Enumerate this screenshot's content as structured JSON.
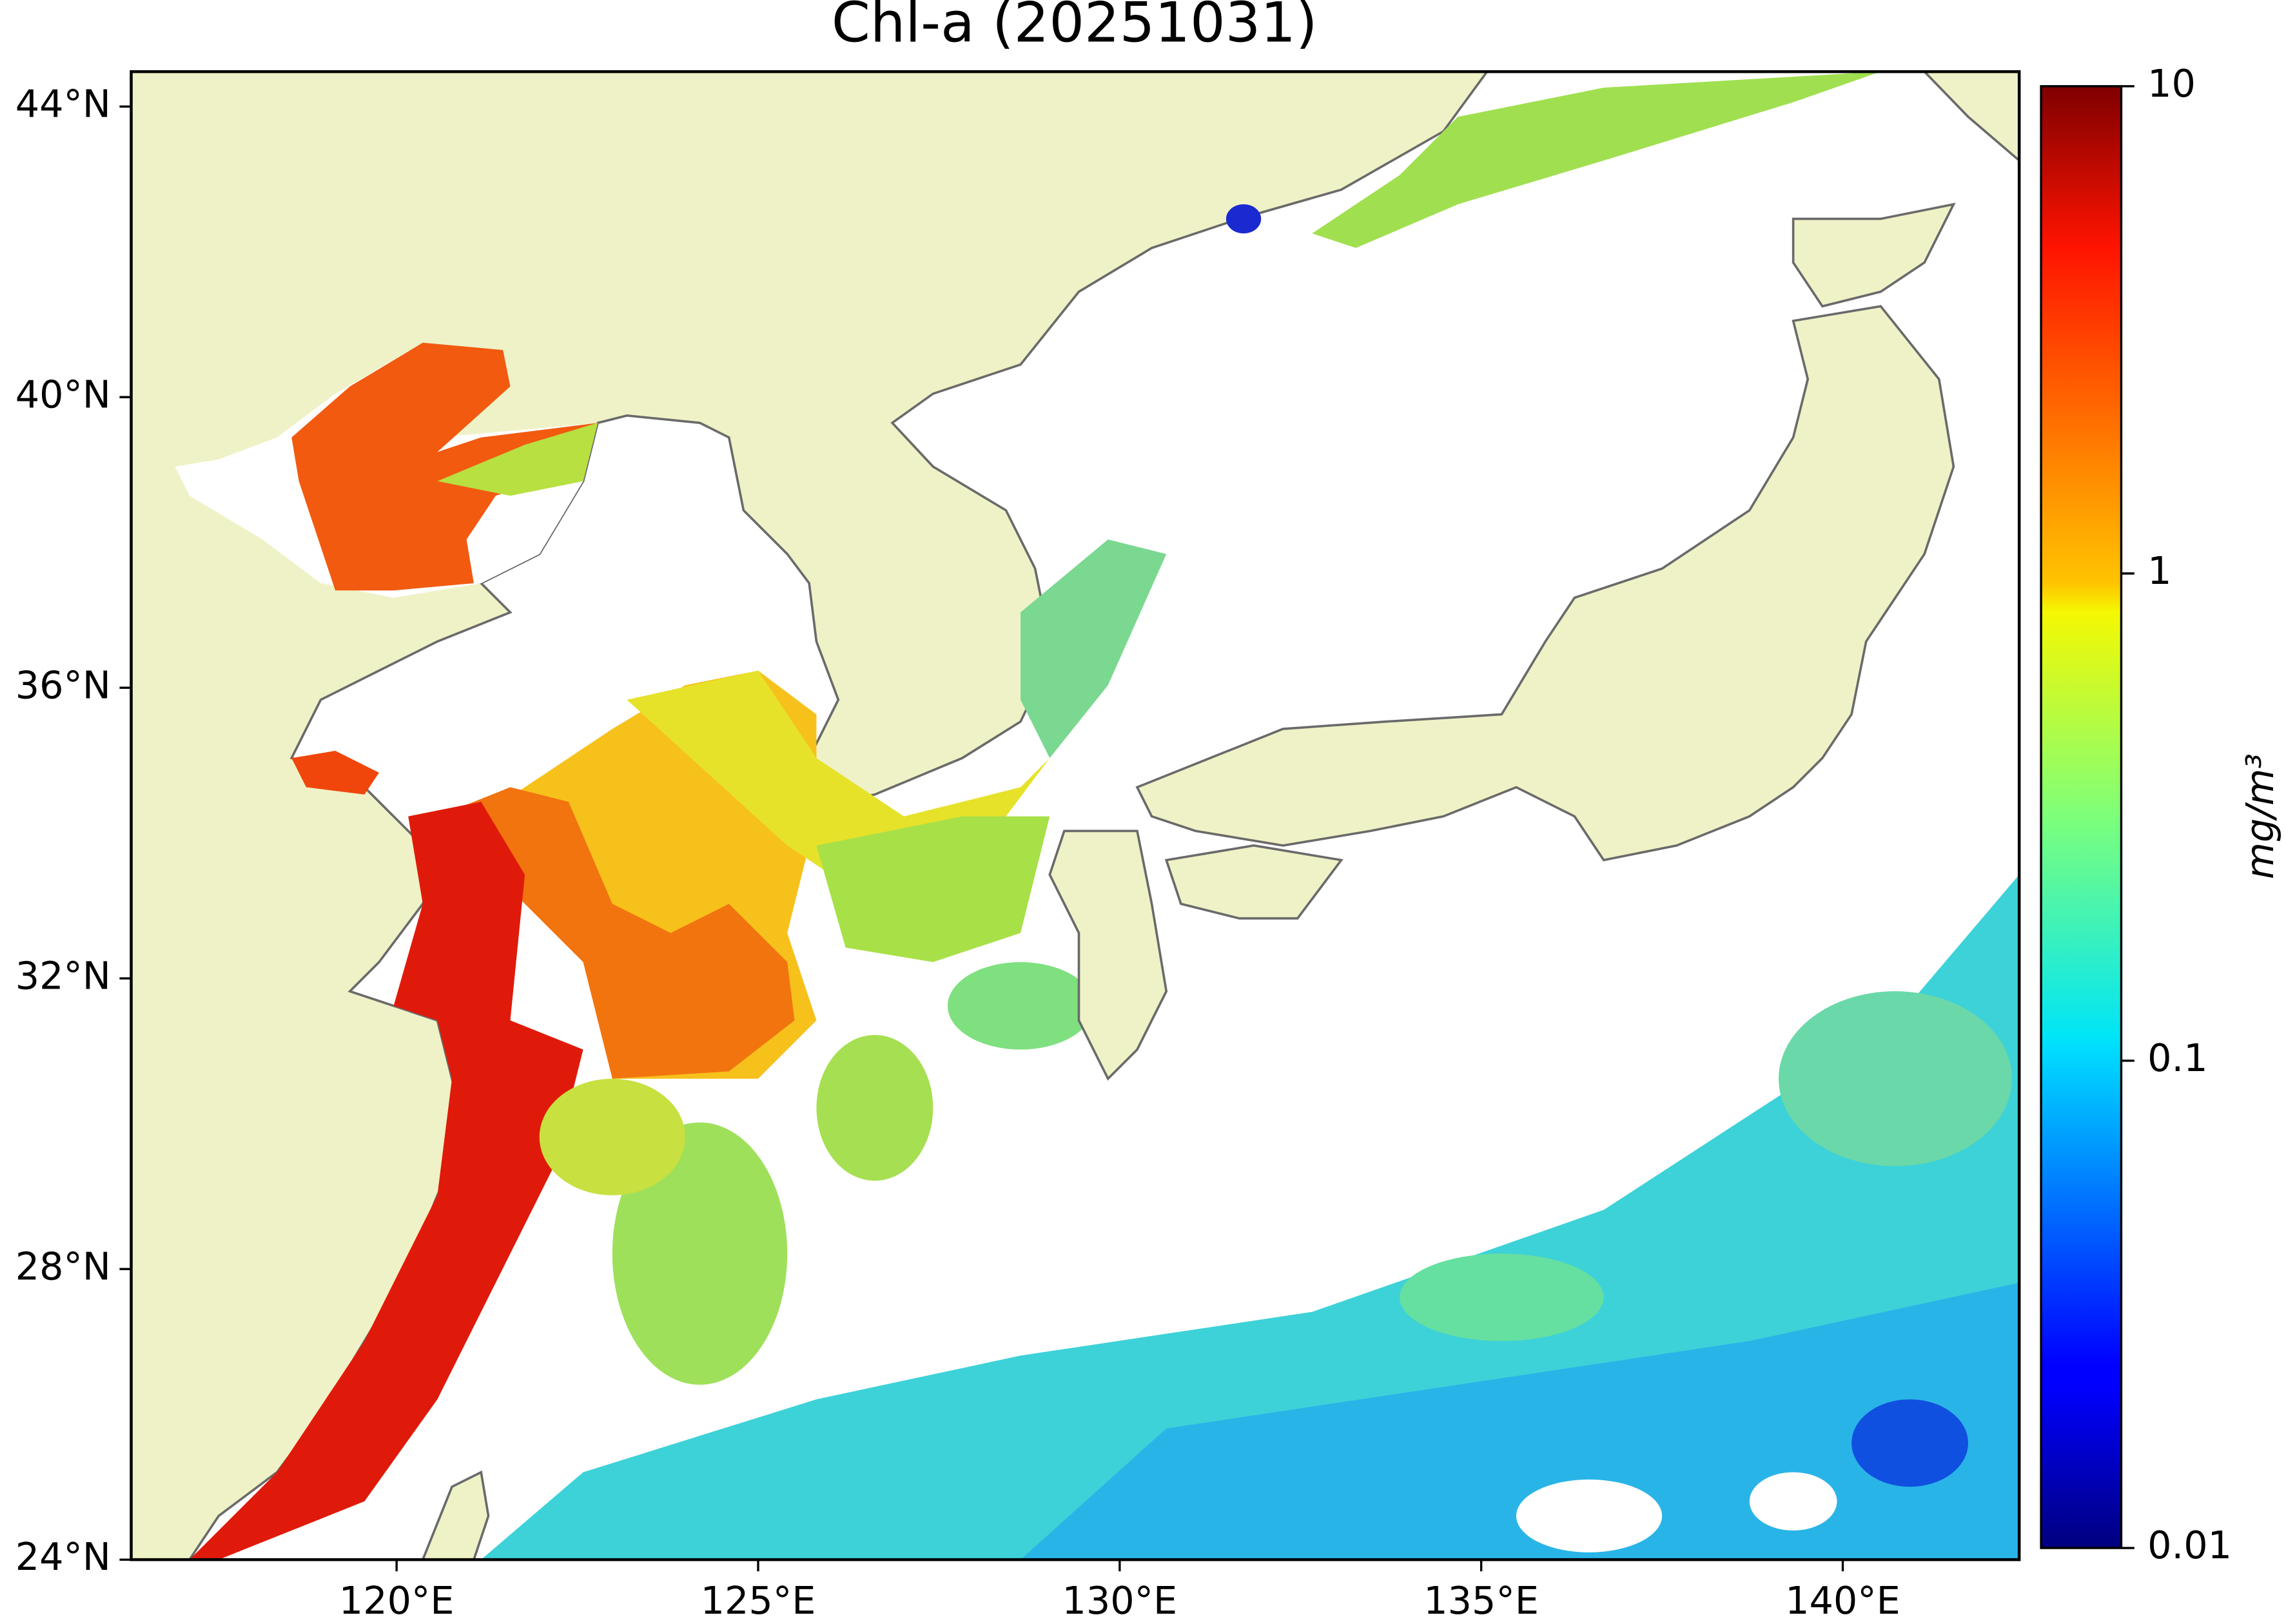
{
  "chart_data": {
    "type": "map",
    "title": "Chl-a (20251031)",
    "xlim": [
      116.33,
      142.44
    ],
    "ylim": [
      24,
      44.48
    ],
    "xticks": [
      {
        "value": 120,
        "label": "120°E"
      },
      {
        "value": 125,
        "label": "125°E"
      },
      {
        "value": 130,
        "label": "130°E"
      },
      {
        "value": 135,
        "label": "135°E"
      },
      {
        "value": 140,
        "label": "140°E"
      }
    ],
    "yticks": [
      {
        "value": 24,
        "label": "24°N"
      },
      {
        "value": 28,
        "label": "28°N"
      },
      {
        "value": 32,
        "label": "32°N"
      },
      {
        "value": 36,
        "label": "36°N"
      },
      {
        "value": 40,
        "label": "40°N"
      },
      {
        "value": 44,
        "label": "44°N"
      }
    ],
    "colorbar": {
      "label": "mg/m³",
      "scale": "log",
      "lim": [
        0.01,
        10
      ],
      "ticks": [
        0.01,
        0.1,
        1,
        10
      ],
      "colormap": "jet"
    }
  }
}
